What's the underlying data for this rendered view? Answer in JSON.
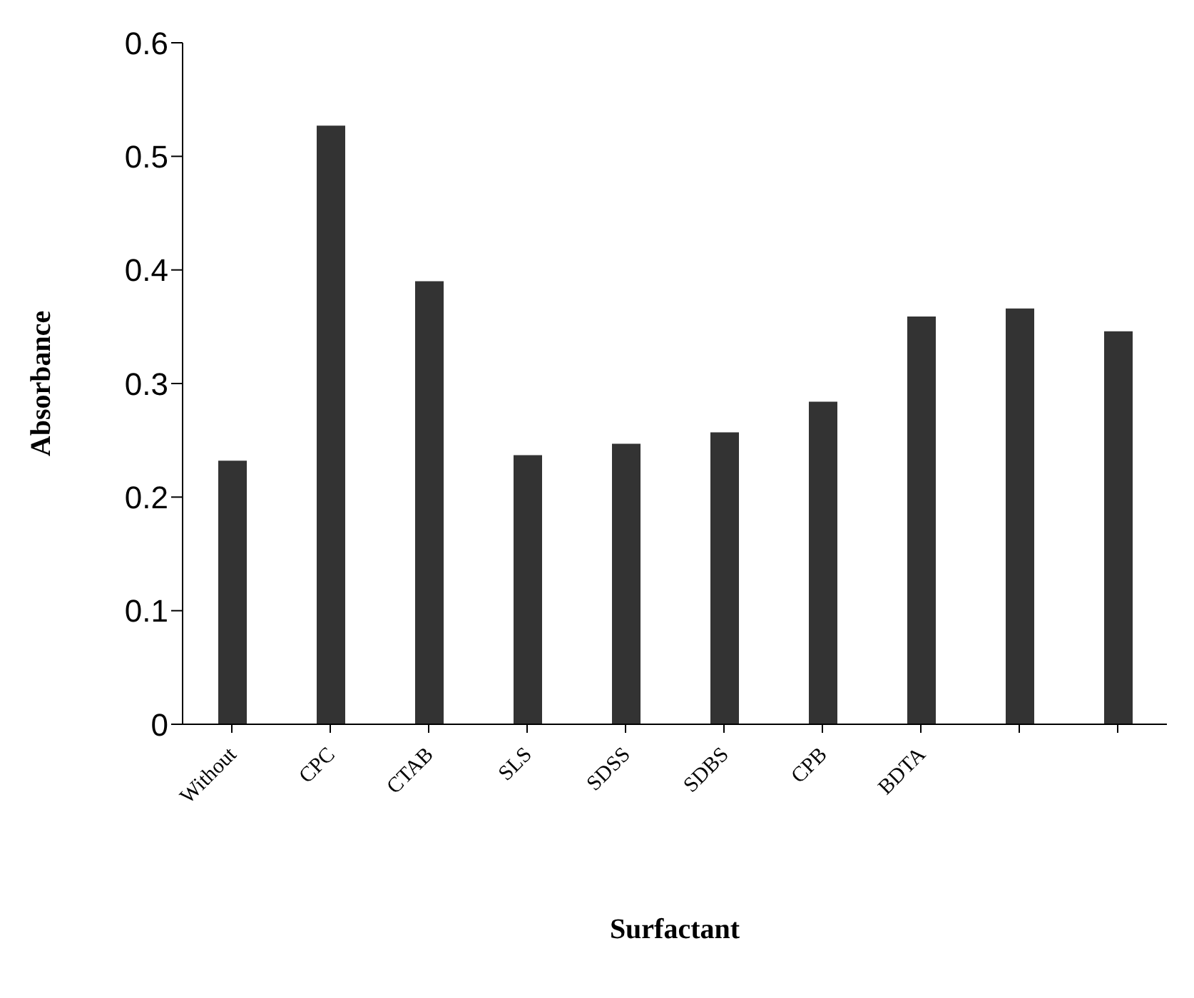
{
  "chart_data": {
    "type": "bar",
    "xlabel": "Surfactant",
    "ylabel": "Absorbance",
    "categories": [
      "Without",
      "CPC",
      "CTAB",
      "SLS",
      "SDSS",
      "SDBS",
      "CPB",
      "BDTA",
      null,
      null
    ],
    "values": [
      0.232,
      0.527,
      0.39,
      0.237,
      0.247,
      0.257,
      0.284,
      0.359,
      0.366,
      0.346
    ],
    "color": "#333333",
    "ylim": [
      0,
      0.6
    ],
    "yticks": [
      0,
      0.1,
      0.2,
      0.3,
      0.4,
      0.5,
      0.6
    ],
    "grid": false,
    "legend": false
  }
}
